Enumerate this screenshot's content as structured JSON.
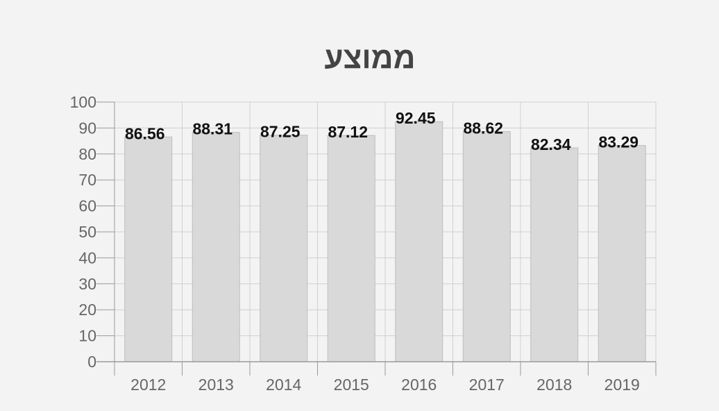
{
  "chart_data": {
    "type": "bar",
    "title": "ממוצע",
    "xlabel": "",
    "ylabel": "",
    "categories": [
      "2012",
      "2013",
      "2014",
      "2015",
      "2016",
      "2017",
      "2018",
      "2019"
    ],
    "values": [
      86.56,
      88.31,
      87.25,
      87.12,
      92.45,
      88.62,
      82.34,
      83.29
    ],
    "value_labels": [
      "86.56",
      "88.31",
      "87.25",
      "87.12",
      "92.45",
      "88.62",
      "82.34",
      "83.29"
    ],
    "yticks": [
      "0",
      "10",
      "20",
      "30",
      "40",
      "50",
      "60",
      "70",
      "80",
      "90",
      "100"
    ],
    "ylim": [
      0,
      100
    ],
    "grid": true,
    "legend": "none",
    "colors": {
      "background": "#f3f3f3",
      "bar_fill": "#d9d9d9",
      "bar_stroke": "#bdbdbd",
      "grid": "#d0d0d0",
      "axis": "#999999",
      "tick_text": "#666666",
      "title_text": "#444444",
      "value_text": "#111111"
    }
  }
}
